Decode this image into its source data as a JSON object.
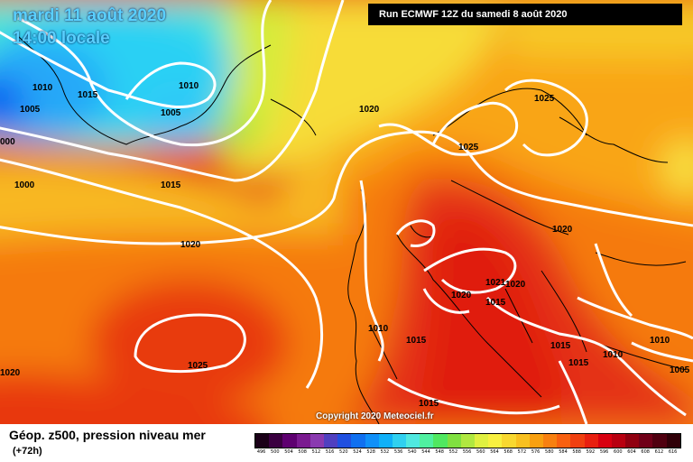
{
  "map": {
    "date_label": "mardi 11 août 2020",
    "time_label": "14:00 locale",
    "run_label": "Run ECMWF 12Z du samedi 8 août 2020",
    "copyright": "Copyright 2020 Meteociel.fr",
    "title": "Géop. z500, pression niveau mer",
    "lead_time": "(+72h)",
    "isobar_labels": [
      {
        "text": "1010",
        "region": "greenland-west"
      },
      {
        "text": "1015",
        "region": "greenland"
      },
      {
        "text": "1005",
        "region": "greenland-west"
      },
      {
        "text": "1010",
        "region": "denmark-strait"
      },
      {
        "text": "1005",
        "region": "iceland-low"
      },
      {
        "text": "000",
        "region": "west-edge"
      },
      {
        "text": "1000",
        "region": "labrador-sea"
      },
      {
        "text": "1015",
        "region": "mid-atlantic-north"
      },
      {
        "text": "1020",
        "region": "north-sea"
      },
      {
        "text": "1025",
        "region": "scandinavia-north"
      },
      {
        "text": "1025",
        "region": "norway"
      },
      {
        "text": "1020",
        "region": "mid-atlantic"
      },
      {
        "text": "1020",
        "region": "central-europe"
      },
      {
        "text": "1021",
        "region": "alps"
      },
      {
        "text": "1020",
        "region": "alps"
      },
      {
        "text": "1020",
        "region": "france"
      },
      {
        "text": "1015",
        "region": "italy-north"
      },
      {
        "text": "1010",
        "region": "iberia"
      },
      {
        "text": "1015",
        "region": "iberia-east"
      },
      {
        "text": "1015",
        "region": "balkans"
      },
      {
        "text": "1015",
        "region": "greece"
      },
      {
        "text": "1010",
        "region": "black-sea"
      },
      {
        "text": "1010",
        "region": "turkey"
      },
      {
        "text": "1005",
        "region": "turkey"
      },
      {
        "text": "1025",
        "region": "azores-high"
      },
      {
        "text": "1020",
        "region": "south-west"
      },
      {
        "text": "1015",
        "region": "north-africa"
      }
    ],
    "legend": {
      "values": [
        "496",
        "500",
        "504",
        "508",
        "512",
        "516",
        "520",
        "524",
        "528",
        "532",
        "536",
        "540",
        "544",
        "548",
        "552",
        "556",
        "560",
        "564",
        "568",
        "572",
        "576",
        "580",
        "584",
        "588",
        "592",
        "596",
        "600",
        "604",
        "608",
        "612",
        "616"
      ],
      "colors": [
        "#1a0018",
        "#3a0040",
        "#5e0070",
        "#7a1a90",
        "#8a3ab0",
        "#5040c0",
        "#2050e0",
        "#1070f0",
        "#1090f8",
        "#10b0f8",
        "#30d0f0",
        "#50e8e0",
        "#50f0a0",
        "#50e860",
        "#80e040",
        "#b0e840",
        "#e0f040",
        "#f8f040",
        "#f8d830",
        "#f8c020",
        "#f8a010",
        "#f88010",
        "#f86010",
        "#f04010",
        "#e82010",
        "#d80010",
        "#b80010",
        "#900010",
        "#700018",
        "#500010",
        "#300008"
      ]
    }
  }
}
